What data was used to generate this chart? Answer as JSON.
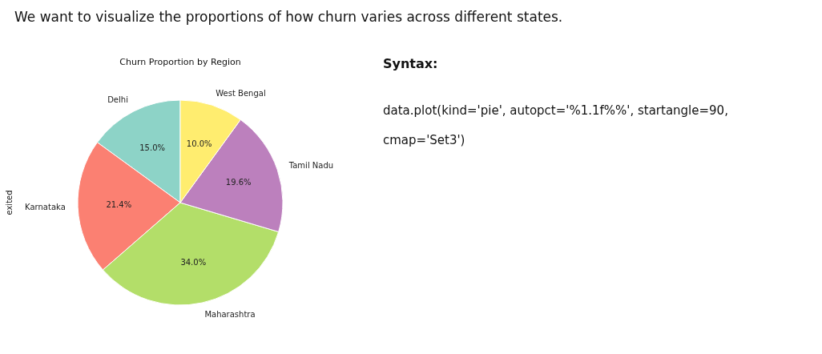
{
  "chart_data": {
    "type": "pie",
    "title": "Churn Proportion by Region",
    "ylabel": "exited",
    "categories": [
      "Delhi",
      "Karnataka",
      "Maharashtra",
      "Tamil Nadu",
      "West Bengal"
    ],
    "values": [
      15.0,
      21.4,
      34.0,
      19.6,
      10.0
    ],
    "colors": [
      "#8dd3c7",
      "#fb8072",
      "#b3de69",
      "#bc80bd",
      "#ffed6f"
    ],
    "value_labels": [
      "15.0%",
      "21.4%",
      "34.0%",
      "19.6%",
      "10.0%"
    ],
    "annotations": [
      "We want to visualize the proportions of how churn varies across different states.",
      "Syntax:",
      "data.plot(kind='pie', autopct='%1.1f%%', startangle=90, cmap='Set3')"
    ]
  }
}
